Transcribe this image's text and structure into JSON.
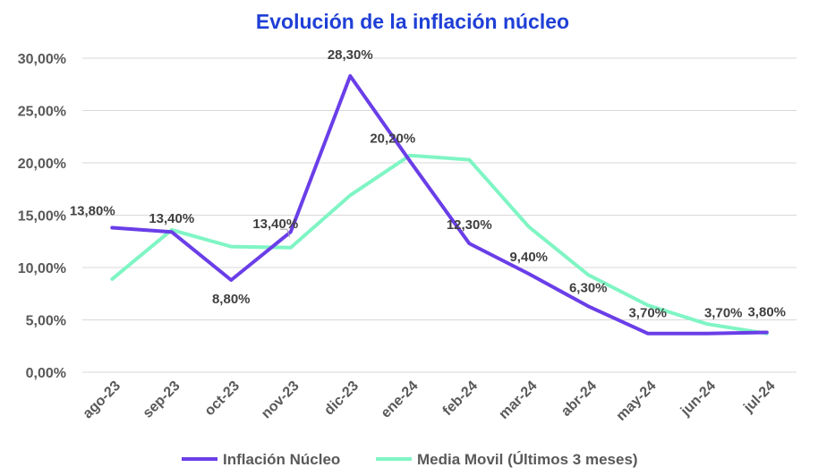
{
  "chart_data": {
    "type": "line",
    "title": "Evolución de la inflación núcleo",
    "xlabel": "",
    "ylabel": "",
    "categories": [
      "ago-23",
      "sep-23",
      "oct-23",
      "nov-23",
      "dic-23",
      "ene-24",
      "feb-24",
      "mar-24",
      "abr-24",
      "may-24",
      "jun-24",
      "jul-24"
    ],
    "ylim": [
      0,
      30
    ],
    "yticks": [
      0,
      5,
      10,
      15,
      20,
      25,
      30
    ],
    "ytick_labels": [
      "0,00%",
      "5,00%",
      "10,00%",
      "15,00%",
      "20,00%",
      "25,00%",
      "30,00%"
    ],
    "grid": true,
    "legend_position": "bottom",
    "series": [
      {
        "name": "Inflación Núcleo",
        "color": "#6a3ee8",
        "values": [
          13.8,
          13.4,
          8.8,
          13.4,
          28.3,
          20.2,
          12.3,
          9.4,
          6.3,
          3.7,
          3.7,
          3.8
        ],
        "labels": [
          "13,80%",
          "13,40%",
          "8,80%",
          "13,40%",
          "28,30%",
          "20,20%",
          "12,30%",
          "9,40%",
          "6,30%",
          "3,70%",
          "3,70%",
          "3,80%"
        ]
      },
      {
        "name": "Media Movil (Últimos 3 meses)",
        "color": "#7ff5c4",
        "values": [
          8.9,
          13.6,
          12.0,
          11.9,
          16.9,
          20.7,
          20.3,
          13.9,
          9.3,
          6.4,
          4.6,
          3.7
        ]
      }
    ]
  }
}
